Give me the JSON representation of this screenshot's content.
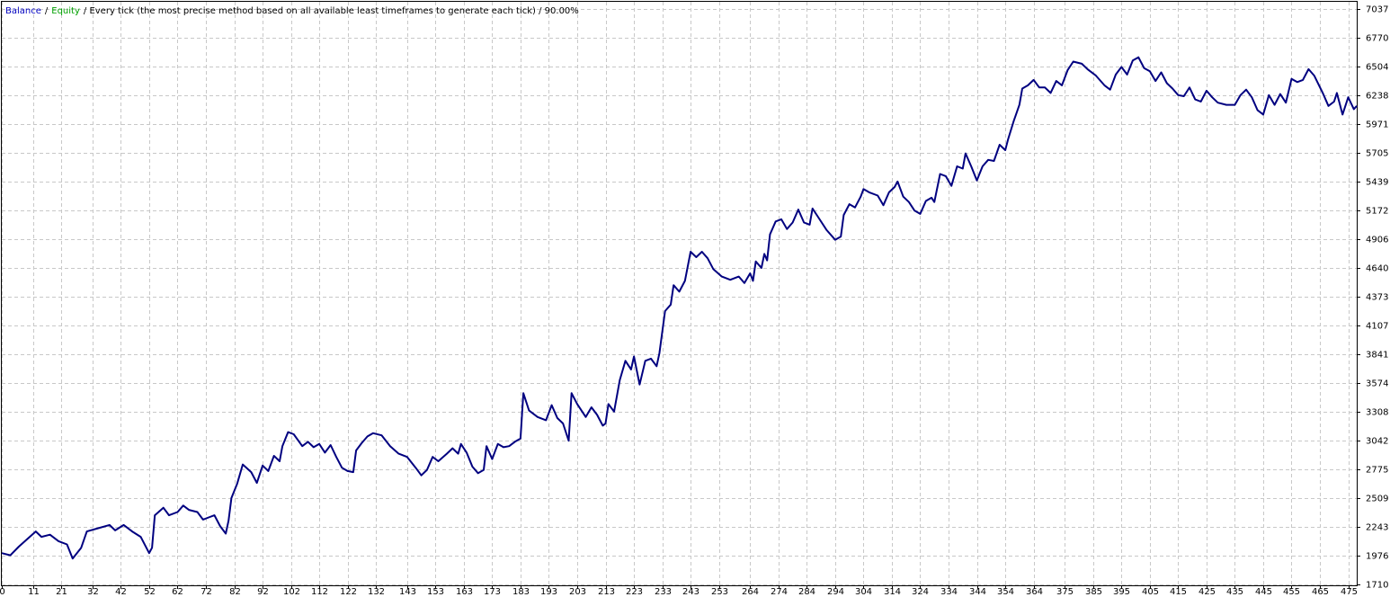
{
  "chart_data": {
    "type": "line",
    "series": [
      {
        "name": "Balance",
        "color": "#000080",
        "label_color": "#0000c0",
        "values": [
          2000,
          1980,
          2060,
          2130,
          2200,
          2150,
          2170,
          2110,
          2080,
          1950,
          2050,
          2200,
          2230,
          2260,
          2210,
          2260,
          2200,
          2150,
          2000,
          2050,
          2350,
          2420,
          2350,
          2380,
          2440,
          2400,
          2380,
          2310,
          2330,
          2350,
          2250,
          2180,
          2300,
          2510,
          2640,
          2820,
          2750,
          2650,
          2810,
          2760,
          2900,
          2850,
          2990,
          3120,
          3100,
          2990,
          3030,
          2980,
          3010,
          2930,
          3000,
          2890,
          2790,
          2760,
          2750,
          2950,
          3020,
          3080,
          3110,
          3090,
          2990,
          2920,
          2890,
          2790,
          2720,
          2770,
          2890,
          2850,
          2920,
          2970,
          2920,
          3010,
          2930,
          2800,
          2740,
          2770,
          2990,
          2870,
          3010,
          2980,
          2990,
          3030,
          3060,
          3480,
          3320,
          3260,
          3230,
          3370,
          3250,
          3200,
          3040,
          3480,
          3380,
          3260,
          3350,
          3280,
          3180,
          3200,
          3380,
          3310,
          3600,
          3780,
          3700,
          3820,
          3560,
          3780,
          3800,
          3730,
          3850,
          4240,
          4300,
          4480,
          4420,
          4520,
          4790,
          4740,
          4790,
          4730,
          4630,
          4560,
          4530,
          4560,
          4500,
          4590,
          4520,
          4700,
          4640,
          4770,
          4710,
          4950,
          5070,
          5090,
          5000,
          5060,
          5180,
          5060,
          5040,
          5190,
          5110,
          4990,
          4900,
          4930,
          5130,
          5230,
          5200,
          5300,
          5370,
          5340,
          5310,
          5220,
          5340,
          5390,
          5440,
          5300,
          5250,
          5170,
          5140,
          5260,
          5290,
          5250,
          5510,
          5490,
          5400,
          5580,
          5560,
          5700,
          5580,
          5450,
          5580,
          5640,
          5630,
          5780,
          5730,
          5830,
          6000,
          6150,
          6300,
          6330,
          6380,
          6310,
          6310,
          6260,
          6370,
          6330,
          6470,
          6550,
          6530,
          6480,
          6420,
          6330,
          6290,
          6430,
          6500,
          6430,
          6560,
          6590,
          6490,
          6460,
          6370,
          6450,
          6350,
          6300,
          6240,
          6230,
          6310,
          6200,
          6180,
          6280,
          6220,
          6170,
          6150,
          6150,
          6240,
          6290,
          6220,
          6100,
          6060,
          6240,
          6150,
          6250,
          6170,
          6390,
          6360,
          6380,
          6480,
          6420,
          6260,
          6140,
          6180,
          6260,
          6060,
          6220,
          6110,
          6140
        ]
      }
    ],
    "x": [
      0,
      3,
      6,
      9,
      12,
      14,
      17,
      20,
      23,
      25,
      28,
      30,
      34,
      38,
      40,
      43,
      46,
      49,
      52,
      53,
      54,
      57,
      59,
      62,
      64,
      66,
      69,
      71,
      73,
      75,
      77,
      79,
      80,
      81,
      83,
      85,
      88,
      90,
      92,
      94,
      96,
      98,
      99,
      101,
      103,
      106,
      108,
      110,
      112,
      114,
      116,
      118,
      120,
      122,
      124,
      125,
      127,
      129,
      131,
      134,
      137,
      140,
      143,
      146,
      148,
      150,
      152,
      154,
      157,
      159,
      161,
      162,
      164,
      166,
      168,
      170,
      171,
      173,
      175,
      177,
      179,
      181,
      183,
      184,
      186,
      189,
      192,
      194,
      196,
      198,
      200,
      201,
      203,
      206,
      208,
      210,
      212,
      213,
      214,
      216,
      218,
      220,
      222,
      223,
      225,
      227,
      229,
      231,
      232,
      234,
      236,
      237,
      239,
      241,
      243,
      245,
      247,
      249,
      251,
      254,
      257,
      260,
      262,
      264,
      265,
      266,
      268,
      269,
      270,
      271,
      273,
      275,
      277,
      279,
      281,
      283,
      285,
      286,
      288,
      291,
      294,
      296,
      297,
      299,
      301,
      303,
      304,
      306,
      309,
      311,
      313,
      315,
      316,
      318,
      320,
      322,
      324,
      326,
      328,
      329,
      331,
      333,
      335,
      337,
      339,
      340,
      342,
      344,
      346,
      348,
      350,
      352,
      354,
      355,
      357,
      359,
      360,
      362,
      364,
      366,
      368,
      370,
      372,
      374,
      376,
      378,
      381,
      383,
      386,
      389,
      391,
      393,
      395,
      397,
      399,
      401,
      403,
      405,
      407,
      409,
      411,
      413,
      415,
      417,
      419,
      421,
      423,
      425,
      427,
      429,
      432,
      435,
      437,
      439,
      441,
      443,
      445,
      447,
      449,
      451,
      453,
      455,
      457,
      459,
      461,
      463,
      466,
      468,
      470,
      471,
      473,
      475,
      477,
      478
    ],
    "legend_extra": {
      "name": "Equity",
      "color": "#00a000"
    },
    "separator": "/",
    "subtitle": "/ Every tick (the most precise method based on all available least timeframes to generate each tick) / 90.00%",
    "xlim": [
      0,
      478
    ],
    "xticks": [
      0,
      11,
      21,
      32,
      42,
      52,
      62,
      72,
      82,
      92,
      102,
      112,
      122,
      132,
      143,
      153,
      163,
      173,
      183,
      193,
      203,
      213,
      223,
      233,
      243,
      253,
      264,
      274,
      284,
      294,
      304,
      314,
      324,
      334,
      344,
      354,
      364,
      375,
      385,
      395,
      405,
      415,
      425,
      435,
      445,
      455,
      465,
      475
    ],
    "ylim": [
      1710,
      7037
    ],
    "yticks": [
      1710,
      1976,
      2243,
      2509,
      2775,
      3042,
      3308,
      3574,
      3841,
      4107,
      4373,
      4640,
      4906,
      5172,
      5439,
      5705,
      5971,
      6238,
      6504,
      6770,
      7037
    ],
    "grid": true
  }
}
